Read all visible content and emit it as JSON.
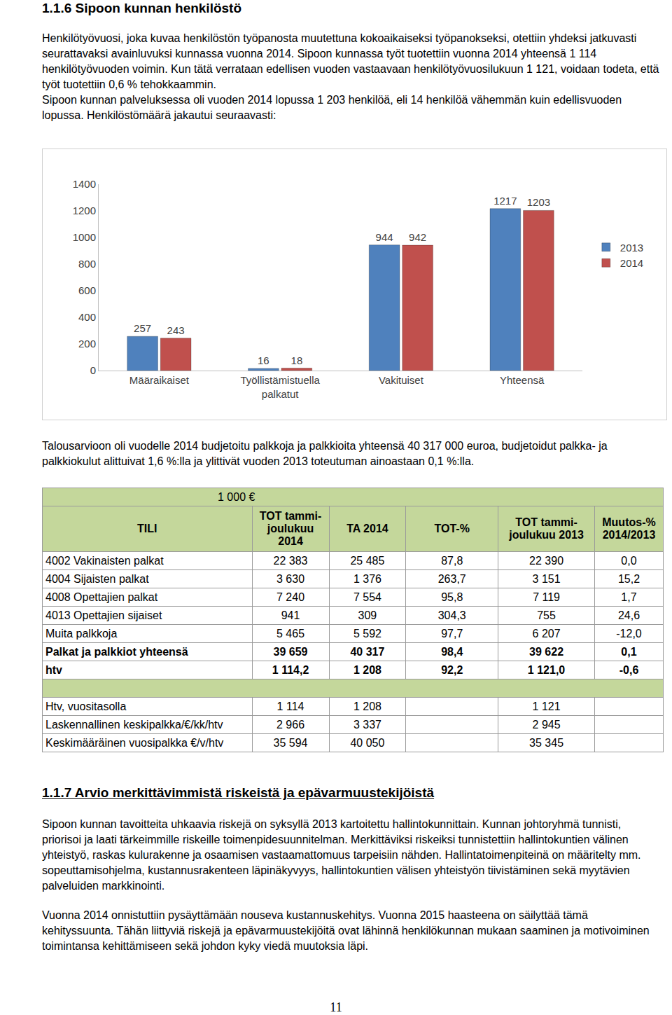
{
  "heading1": "1.1.6 Sipoon kunnan henkilöstö",
  "paragraphs1": [
    "Henkilötyövuosi, joka kuvaa henkilöstön työpanosta muutettuna kokoaikaiseksi työpanokseksi, otettiin yhdeksi jatkuvasti seurattavaksi avainluvuksi kunnassa vuonna 2014. Sipoon kunnassa työt tuotettiin vuonna 2014 yhteensä 1 114 henkilötyövuoden voimin. Kun tätä verrataan edellisen vuoden vastaavaan henkilötyövuosilukuun 1 121, voidaan todeta, että työt tuotettiin 0,6 % tehokkaammin.",
    "Sipoon kunnan palveluksessa oli vuoden 2014 lopussa 1 203 henkilöä, eli 14 henkilöä vähemmän kuin edellisvuoden lopussa. Henkilöstömäärä jakautui seuraavasti:"
  ],
  "chart_data": {
    "type": "bar",
    "categories": [
      "Määraikaiset",
      "Työllistämistuella palkatut",
      "Vakituiset",
      "Yhteensä"
    ],
    "series": [
      {
        "name": "2013",
        "color": "#4f81bd",
        "values": [
          257,
          16,
          944,
          1217
        ]
      },
      {
        "name": "2014",
        "color": "#c0504d",
        "values": [
          243,
          18,
          942,
          1203
        ]
      }
    ],
    "ylim": [
      0,
      1400
    ],
    "yticks": [
      0,
      200,
      400,
      600,
      800,
      1000,
      1200,
      1400
    ],
    "grid": false,
    "legend": "right",
    "data_labels": true
  },
  "paragraph2": "Talousarvioon oli vuodelle 2014 budjetoitu palkkoja ja palkkioita yhteensä 40 317 000 euroa, budjetoidut palkka- ja palkkiokulut alittuivat 1,6 %:lla ja ylittivät vuoden 2013 toteutuman ainoastaan 0,1 %:lla.",
  "table": {
    "unit": "1 000 €",
    "header": [
      "TILI",
      "TOT tammi-joulukuu 2014",
      "TA 2014",
      "TOT-%",
      "TOT tammi-joulukuu 2013",
      "Muutos-% 2014/2013"
    ],
    "rows": [
      {
        "cells": [
          "4002 Vakinaisten palkat",
          "22 383",
          "25 485",
          "87,8",
          "22 390",
          "0,0"
        ],
        "bold": false
      },
      {
        "cells": [
          "4004 Sijaisten palkat",
          "3 630",
          "1 376",
          "263,7",
          "3 151",
          "15,2"
        ],
        "bold": false
      },
      {
        "cells": [
          "4008 Opettajien palkat",
          "7 240",
          "7 554",
          "95,8",
          "7 119",
          "1,7"
        ],
        "bold": false
      },
      {
        "cells": [
          "4013 Opettajien sijaiset",
          "941",
          "309",
          "304,3",
          "755",
          "24,6"
        ],
        "bold": false
      },
      {
        "cells": [
          "Muita palkkoja",
          "5 465",
          "5 592",
          "97,7",
          "6 207",
          "-12,0"
        ],
        "bold": false
      },
      {
        "cells": [
          "Palkat ja palkkiot yhteensä",
          "39 659",
          "40 317",
          "98,4",
          "39 622",
          "0,1"
        ],
        "bold": true
      },
      {
        "cells": [
          "htv",
          "1 114,2",
          "1 208",
          "92,2",
          "1 121,0",
          "-0,6"
        ],
        "bold": true
      }
    ],
    "rows2": [
      {
        "cells": [
          "Htv, vuositasolla",
          "1 114",
          "1 208",
          null,
          "1 121",
          null
        ],
        "bold": false
      },
      {
        "cells": [
          "Laskennallinen keskipalkka/€/kk/htv",
          "2 966",
          "3 337",
          null,
          "2 945",
          null
        ],
        "bold": false
      },
      {
        "cells": [
          "Keskimääräinen vuosipalkka €/v/htv",
          "35 594",
          "40 050",
          null,
          "35 345",
          null
        ],
        "bold": false
      }
    ]
  },
  "heading2": "1.1.7 Arvio merkittävimmistä riskeistä ja epävarmuustekijöistä",
  "paragraphs3": [
    "Sipoon kunnan tavoitteita uhkaavia riskejä on syksyllä 2013 kartoitettu hallintokunnittain. Kunnan johtoryhmä tunnisti, priorisoi ja laati tärkeimmille riskeille toimenpidesuunnitelman. Merkittäviksi riskeiksi tunnistettiin hallintokuntien välinen yhteistyö, raskas kulurakenne ja osaamisen vastaamattomuus tarpeisiin nähden. Hallintatoimenpiteinä on määritelty mm. sopeuttamisohjelma, kustannusrakenteen läpinäkyvyys, hallintokuntien välisen yhteistyön tiivistäminen sekä myytävien palveluiden markkinointi.",
    "Vuonna 2014 onnistuttiin pysäyttämään nouseva kustannuskehitys. Vuonna 2015 haasteena on säilyttää tämä kehityssuunta. Tähän liittyviä riskejä ja epävarmuustekijöitä ovat lähinnä henkilökunnan mukaan saaminen ja motivoiminen toimintansa kehittämiseen sekä johdon kyky viedä muutoksia läpi."
  ],
  "page_number": "11"
}
